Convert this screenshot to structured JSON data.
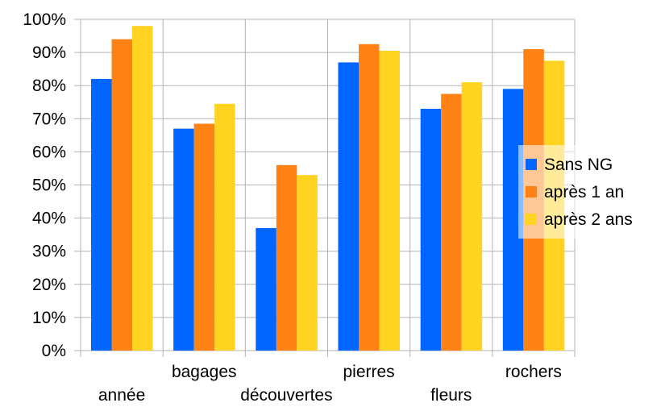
{
  "chart_data": {
    "type": "bar",
    "categories": [
      "année",
      "bagages",
      "découvertes",
      "pierres",
      "fleurs",
      "rochers"
    ],
    "series": [
      {
        "name": "Sans NG",
        "color": "#0066ff",
        "values": [
          0.82,
          0.67,
          0.37,
          0.87,
          0.73,
          0.79
        ]
      },
      {
        "name": "après  1 an",
        "color": "#ff8314",
        "values": [
          0.94,
          0.685,
          0.56,
          0.925,
          0.775,
          0.91
        ]
      },
      {
        "name": "après 2 ans",
        "color": "#ffd320",
        "values": [
          0.98,
          0.745,
          0.53,
          0.905,
          0.81,
          0.875
        ]
      }
    ],
    "ylim": [
      0,
      1
    ],
    "yticks": [
      0,
      0.1,
      0.2,
      0.3,
      0.4,
      0.5,
      0.6,
      0.7,
      0.8,
      0.9,
      1.0
    ],
    "ytick_labels": [
      "0%",
      "10%",
      "20%",
      "30%",
      "40%",
      "50%",
      "60%",
      "70%",
      "80%",
      "90%",
      "100%"
    ],
    "title": "",
    "xlabel": "",
    "ylabel": "",
    "grid": "horizontal and vertical",
    "legend_position": "right",
    "label_stagger": "alternating"
  }
}
